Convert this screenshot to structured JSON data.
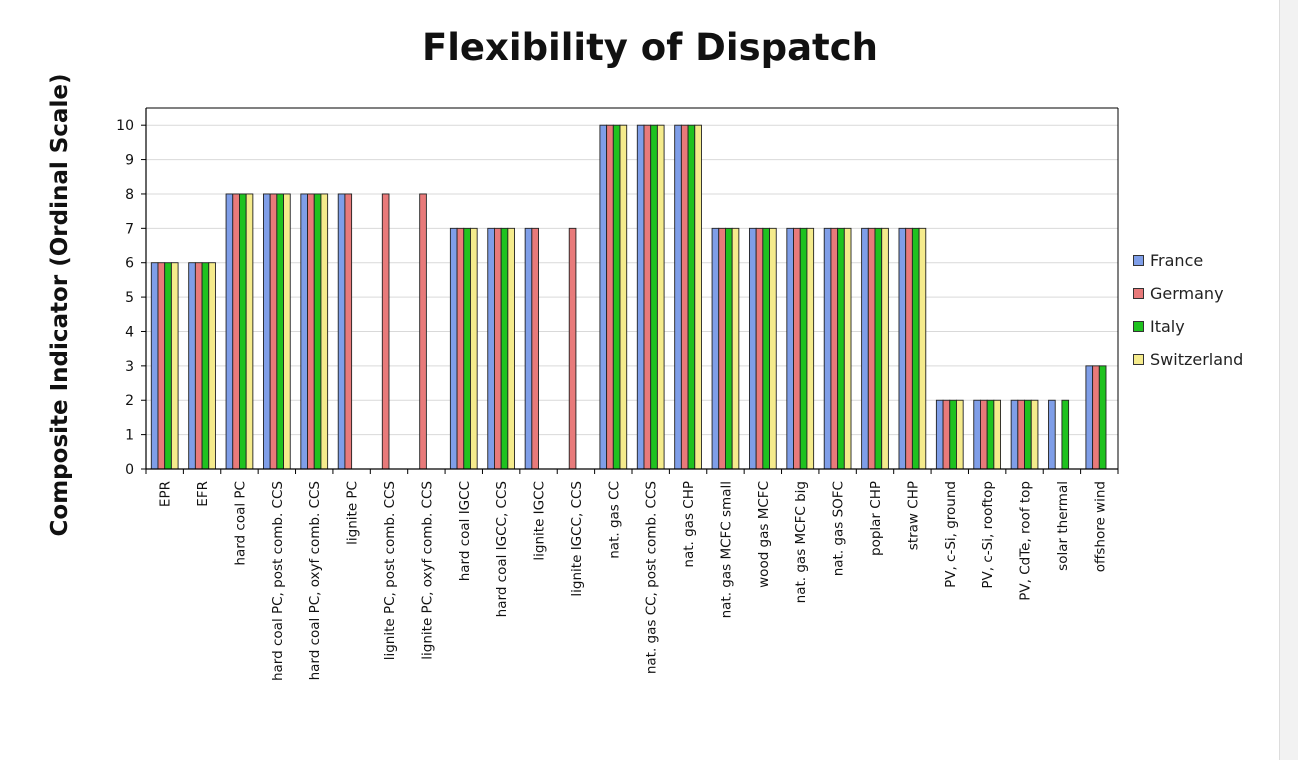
{
  "chart_data": {
    "type": "bar",
    "title": "Flexibility of Dispatch",
    "xlabel": "",
    "ylabel": "Composite Indicator (Ordinal Scale)",
    "ylim": [
      0,
      10.5
    ],
    "yticks": [
      0,
      1,
      2,
      3,
      4,
      5,
      6,
      7,
      8,
      9,
      10
    ],
    "grid": true,
    "legend_position": "right",
    "categories": [
      "EPR",
      "EFR",
      "hard coal PC",
      "hard coal PC, post comb. CCS",
      "hard coal PC, oxyf comb. CCS",
      "lignite PC",
      "lignite PC, post comb. CCS",
      "lignite PC, oxyf comb. CCS",
      "hard coal IGCC",
      "hard coal IGCC, CCS",
      "lignite IGCC",
      "lignite IGCC, CCS",
      "nat. gas CC",
      "nat. gas CC, post comb. CCS",
      "nat. gas CHP",
      "nat. gas MCFC small",
      "wood gas MCFC",
      "nat. gas MCFC big",
      "nat. gas SOFC",
      "poplar CHP",
      "straw CHP",
      "PV, c-Si, ground",
      "PV, c-Si, rooftop",
      "PV, CdTe, roof top",
      "solar thermal",
      "offshore wind"
    ],
    "series": [
      {
        "name": "France",
        "color": "#7f9ee8",
        "values": [
          6,
          6,
          8,
          8,
          8,
          8,
          null,
          null,
          7,
          7,
          7,
          null,
          10,
          10,
          10,
          7,
          7,
          7,
          7,
          7,
          7,
          2,
          2,
          2,
          2,
          3
        ]
      },
      {
        "name": "Germany",
        "color": "#e87a7a",
        "values": [
          6,
          6,
          8,
          8,
          8,
          8,
          8,
          8,
          7,
          7,
          7,
          7,
          10,
          10,
          10,
          7,
          7,
          7,
          7,
          7,
          7,
          2,
          2,
          2,
          null,
          3
        ]
      },
      {
        "name": "Italy",
        "color": "#1fc21f",
        "values": [
          6,
          6,
          8,
          8,
          8,
          null,
          null,
          null,
          7,
          7,
          null,
          null,
          10,
          10,
          10,
          7,
          7,
          7,
          7,
          7,
          7,
          2,
          2,
          2,
          2,
          3
        ]
      },
      {
        "name": "Switzerland",
        "color": "#f5eb8c",
        "values": [
          6,
          6,
          8,
          8,
          8,
          null,
          null,
          null,
          7,
          7,
          null,
          null,
          10,
          10,
          10,
          7,
          7,
          7,
          7,
          7,
          7,
          2,
          2,
          2,
          null,
          null
        ]
      }
    ]
  }
}
